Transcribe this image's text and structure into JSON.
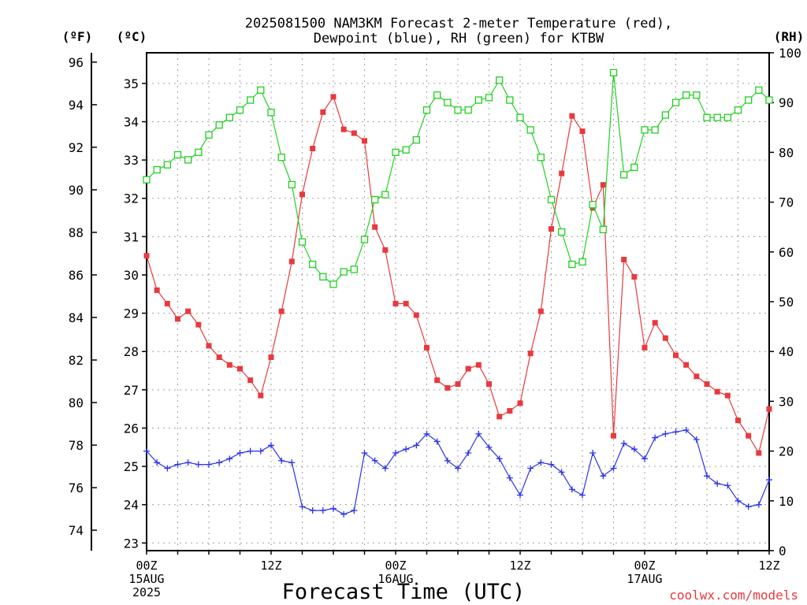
{
  "chart_data": {
    "type": "line",
    "title": [
      "2025081500 NAM3KM Forecast 2-meter Temperature (red),",
      "Dewpoint (blue), RH (green) for KTBW"
    ],
    "xlabel": "Forecast Time (UTC)",
    "credit": "coolwx.com/models",
    "units": {
      "f": "(ºF)",
      "c": "(ºC)",
      "rh": "(RH)"
    },
    "x_forecast_hours": [
      0,
      1,
      2,
      3,
      4,
      5,
      6,
      7,
      8,
      9,
      10,
      11,
      12,
      13,
      14,
      15,
      16,
      17,
      18,
      19,
      20,
      21,
      22,
      23,
      24,
      25,
      26,
      27,
      28,
      29,
      30,
      31,
      32,
      33,
      34,
      35,
      36,
      37,
      38,
      39,
      40,
      41,
      42,
      43,
      44,
      45,
      46,
      47,
      48,
      49,
      50,
      51,
      52,
      53,
      54,
      55,
      56,
      57,
      58,
      59,
      60
    ],
    "xlim": [
      0,
      60
    ],
    "x_ticks": [
      {
        "hour": 0,
        "lines": [
          "00Z",
          "15AUG",
          "2025"
        ]
      },
      {
        "hour": 12,
        "lines": [
          "12Z"
        ]
      },
      {
        "hour": 24,
        "lines": [
          "00Z",
          "16AUG"
        ]
      },
      {
        "hour": 36,
        "lines": [
          "12Z"
        ]
      },
      {
        "hour": 48,
        "lines": [
          "00Z",
          "17AUG"
        ]
      },
      {
        "hour": 60,
        "lines": [
          "12Z"
        ]
      }
    ],
    "axes": {
      "celsius": {
        "range": [
          22.8,
          35.8
        ],
        "ticks": [
          23,
          24,
          25,
          26,
          27,
          28,
          29,
          30,
          31,
          32,
          33,
          34,
          35
        ]
      },
      "fahrenheit": {
        "ticks": [
          74,
          76,
          78,
          80,
          82,
          84,
          86,
          88,
          90,
          92,
          94,
          96
        ]
      },
      "rh": {
        "range": [
          0,
          100
        ],
        "ticks": [
          0,
          10,
          20,
          30,
          40,
          50,
          60,
          70,
          80,
          90,
          100
        ]
      }
    },
    "grid": true,
    "colors": {
      "temperature": "#e8393d",
      "dewpoint": "#2c34e8",
      "rh": "#20d020"
    },
    "series": [
      {
        "key": "temperature",
        "unit": "C",
        "marker": "filled-square",
        "values": [
          30.5,
          29.6,
          29.25,
          28.85,
          29.05,
          28.7,
          28.15,
          27.85,
          27.65,
          27.55,
          27.25,
          26.85,
          27.85,
          29.05,
          30.35,
          32.1,
          33.3,
          34.25,
          34.65,
          33.8,
          33.7,
          33.5,
          31.25,
          30.65,
          29.25,
          29.25,
          28.95,
          28.1,
          27.25,
          27.05,
          27.15,
          27.55,
          27.65,
          27.15,
          26.3,
          26.45,
          26.65,
          27.95,
          29.05,
          31.2,
          32.65,
          34.15,
          33.75,
          31.75,
          32.35,
          25.8,
          30.4,
          29.95,
          28.1,
          28.75,
          28.35,
          27.9,
          27.65,
          27.35,
          27.15,
          26.95,
          26.85,
          26.2,
          25.8,
          25.35,
          26.5
        ]
      },
      {
        "key": "dewpoint",
        "unit": "C",
        "marker": "plus",
        "values": [
          25.4,
          25.1,
          24.95,
          25.05,
          25.1,
          25.05,
          25.05,
          25.1,
          25.2,
          25.35,
          25.4,
          25.4,
          25.55,
          25.15,
          25.1,
          23.95,
          23.85,
          23.85,
          23.9,
          23.75,
          23.85,
          25.35,
          25.15,
          24.95,
          25.35,
          25.45,
          25.55,
          25.85,
          25.65,
          25.15,
          24.95,
          25.35,
          25.85,
          25.5,
          25.2,
          24.7,
          24.25,
          24.95,
          25.1,
          25.05,
          24.85,
          24.4,
          24.25,
          25.35,
          24.75,
          24.95,
          25.6,
          25.45,
          25.2,
          25.75,
          25.85,
          25.9,
          25.95,
          25.7,
          24.75,
          24.55,
          24.5,
          24.1,
          23.95,
          24.0,
          24.65
        ]
      },
      {
        "key": "rh",
        "unit": "%",
        "marker": "open-square",
        "values": [
          74.5,
          76.5,
          77.5,
          79.5,
          78.5,
          80,
          83.5,
          85.5,
          87,
          88.5,
          90.5,
          92.5,
          88,
          79,
          73.5,
          62,
          57.5,
          55,
          53.5,
          56,
          56.5,
          62.5,
          70.5,
          71.5,
          80,
          80.5,
          82.5,
          88.5,
          91.5,
          90,
          88.5,
          88.5,
          90.5,
          91,
          94.5,
          90.5,
          87,
          84.5,
          79,
          70.5,
          64,
          57.5,
          58,
          69.5,
          64.5,
          96,
          75.5,
          77,
          84.5,
          84.5,
          87.5,
          90,
          91.5,
          91.5,
          87,
          87,
          87,
          88.5,
          90.5,
          92.5,
          90.5
        ]
      }
    ]
  }
}
